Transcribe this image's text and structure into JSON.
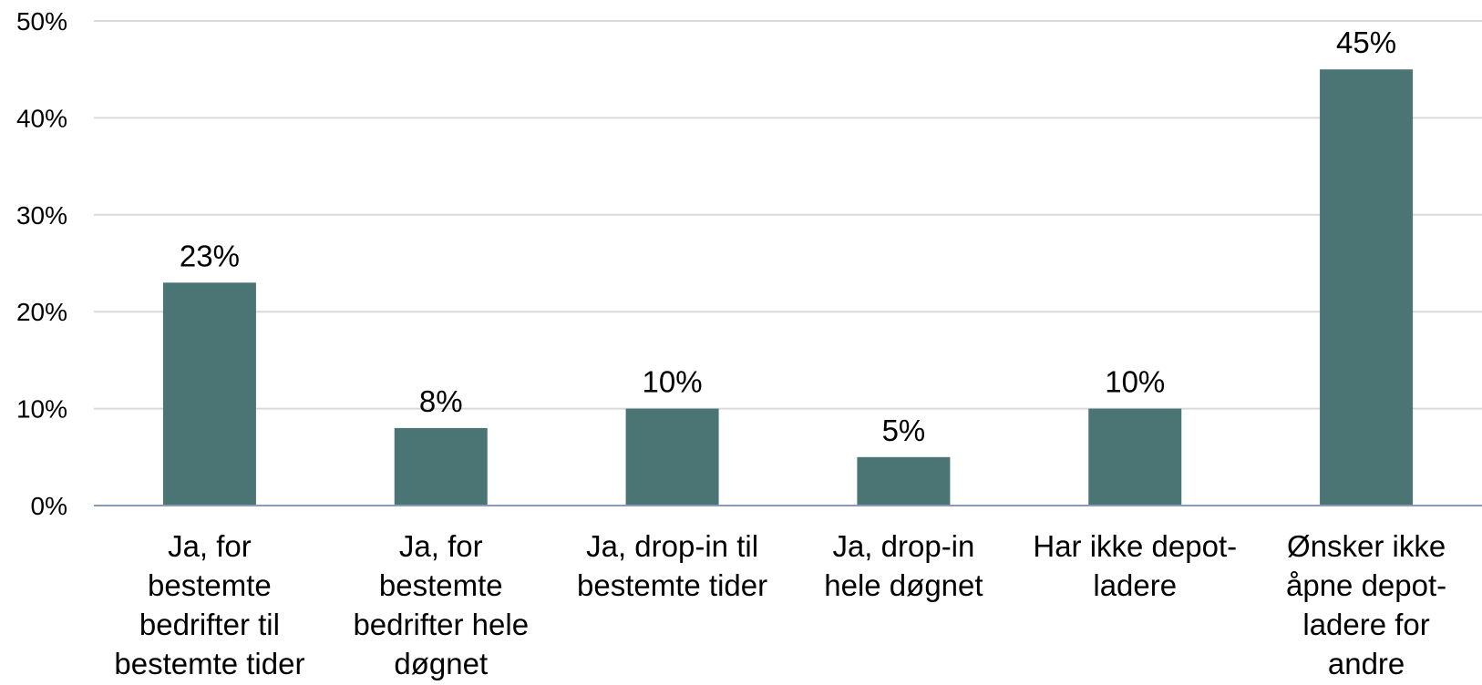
{
  "chart_data": {
    "type": "bar",
    "categories": [
      "Ja, for bestemte bedrifter til bestemte tider",
      "Ja, for bestemte bedrifter hele døgnet",
      "Ja, drop-in til bestemte tider",
      "Ja, drop-in hele døgnet",
      "Har ikke depot-ladere",
      "Ønsker ikke åpne depot-ladere for andre"
    ],
    "category_lines": [
      [
        "Ja, for",
        "bestemte",
        "bedrifter til",
        "bestemte tider"
      ],
      [
        "Ja, for",
        "bestemte",
        "bedrifter hele",
        "døgnet"
      ],
      [
        "Ja, drop-in til",
        "bestemte tider"
      ],
      [
        "Ja, drop-in",
        "hele døgnet"
      ],
      [
        "Har ikke depot-",
        "ladere"
      ],
      [
        "Ønsker ikke",
        "åpne depot-",
        "ladere for",
        "andre"
      ]
    ],
    "values": [
      23,
      8,
      10,
      5,
      10,
      45
    ],
    "data_labels": [
      "23%",
      "8%",
      "10%",
      "5%",
      "10%",
      "45%"
    ],
    "ylim": [
      0,
      50
    ],
    "yticks": [
      0,
      10,
      20,
      30,
      40,
      50
    ],
    "ytick_labels": [
      "0%",
      "10%",
      "20%",
      "30%",
      "40%",
      "50%"
    ],
    "grid": true,
    "legend": "none",
    "title": "",
    "xlabel": "",
    "ylabel": "",
    "colors": {
      "bar": "#4a7574",
      "grid": "#d9d9d9",
      "axis": "#8c9bb5"
    }
  }
}
